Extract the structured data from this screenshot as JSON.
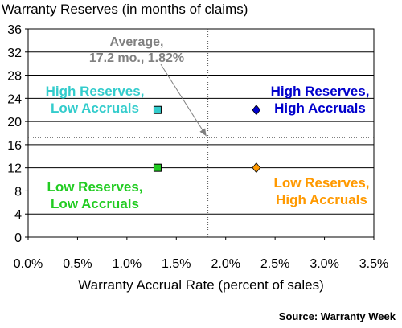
{
  "chart_data": {
    "type": "scatter",
    "title": "Warranty Reserves (in months of claims)",
    "xlabel": "Warranty Accrual Rate (percent of sales)",
    "ylabel": "",
    "xlim": [
      0,
      3.5
    ],
    "ylim": [
      0,
      36
    ],
    "x_ticks": [
      "0.0%",
      "0.5%",
      "1.0%",
      "1.5%",
      "2.0%",
      "2.5%",
      "3.0%",
      "3.5%"
    ],
    "y_ticks": [
      "0",
      "4",
      "8",
      "12",
      "16",
      "20",
      "24",
      "28",
      "32",
      "36"
    ],
    "grid": "horizontal",
    "points": [
      {
        "x": 1.31,
        "y": 22,
        "color": "#33cccc",
        "marker": "square"
      },
      {
        "x": 2.31,
        "y": 22,
        "color": "#0000cc",
        "marker": "diamond"
      },
      {
        "x": 1.31,
        "y": 12,
        "color": "#22cc22",
        "marker": "square"
      },
      {
        "x": 2.31,
        "y": 12,
        "color": "#ff9900",
        "marker": "diamond"
      }
    ],
    "average": {
      "x": 1.82,
      "y": 17.2,
      "label_line1": "Average,",
      "label_line2": "17.2 mo., 1.82%",
      "color": "#808080"
    },
    "quadrants": {
      "top_left": {
        "line1": "High Reserves,",
        "line2": "Low Accruals",
        "color": "#33cccc"
      },
      "top_right": {
        "line1": "High Reserves,",
        "line2": "High Accruals",
        "color": "#0000cc"
      },
      "bottom_left": {
        "line1": "Low Reserves,",
        "line2": "Low Accruals",
        "color": "#22cc22"
      },
      "bottom_right": {
        "line1": "Low Reserves,",
        "line2": "High Accruals",
        "color": "#ff9900"
      }
    },
    "source": "Source: Warranty Week"
  }
}
